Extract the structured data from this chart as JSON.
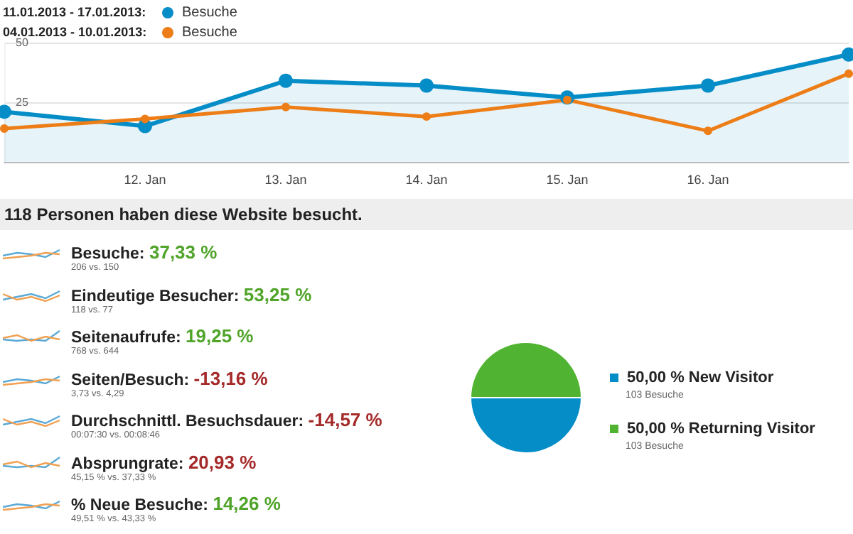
{
  "chart_data": [
    {
      "type": "line",
      "categories": [
        null,
        "12. Jan",
        "13. Jan",
        "14. Jan",
        "15. Jan",
        "16. Jan",
        null
      ],
      "series": [
        {
          "name": "Besuche",
          "type": "area",
          "color": "#058dc7",
          "values": [
            21,
            15,
            34,
            32,
            27,
            32,
            45
          ]
        },
        {
          "name": "Besuche",
          "color": "#ed7e17",
          "values": [
            14,
            18,
            23,
            19,
            26,
            13,
            37
          ]
        }
      ],
      "annotations": [
        "11.01.2013 - 17.01.2013:",
        "04.01.2013 - 10.01.2013:"
      ],
      "ylim": [
        0,
        50
      ],
      "yticks": [
        25,
        50
      ],
      "grid": "y",
      "marker": "circle",
      "legend": "top left"
    },
    {
      "type": "other",
      "title": "118 Personen haben diese Website besucht.",
      "annotations": [
        "Besuche:",
        "37,33 %",
        "206 vs. 150",
        "Eindeutige Besucher:",
        "53,25 %",
        "118 vs. 77",
        "Seitenaufrufe:",
        "19,25 %",
        "768 vs. 644",
        "Seiten/Besuch:",
        "-13,16 %",
        "3,73 vs. 4,29",
        "Durchschnittl. Besuchsdauer:",
        "-14,57 %",
        "00:07:30 vs. 00:08:46",
        "Absprungrate:",
        "20,93 %",
        "45,15 % vs. 37,33 %",
        "% Neue Besuche:",
        "14,26 %",
        "49,51 % vs. 43,33 %"
      ],
      "colors": [
        "#50a42a",
        "#50a42a",
        "#50a42a",
        "#a52a2a",
        "#a52a2a",
        "#a52a2a",
        "#50a42a"
      ]
    },
    {
      "type": "pie",
      "categories": [
        "New Visitor",
        "Returning Visitor"
      ],
      "values": [
        50,
        50
      ],
      "colors": [
        "#058dc7",
        "#50b432"
      ],
      "value_labels": [
        "50,00 %",
        "50,00 %"
      ],
      "annotations": [
        "103 Besuche",
        "103 Besuche"
      ],
      "legend": "right"
    }
  ]
}
